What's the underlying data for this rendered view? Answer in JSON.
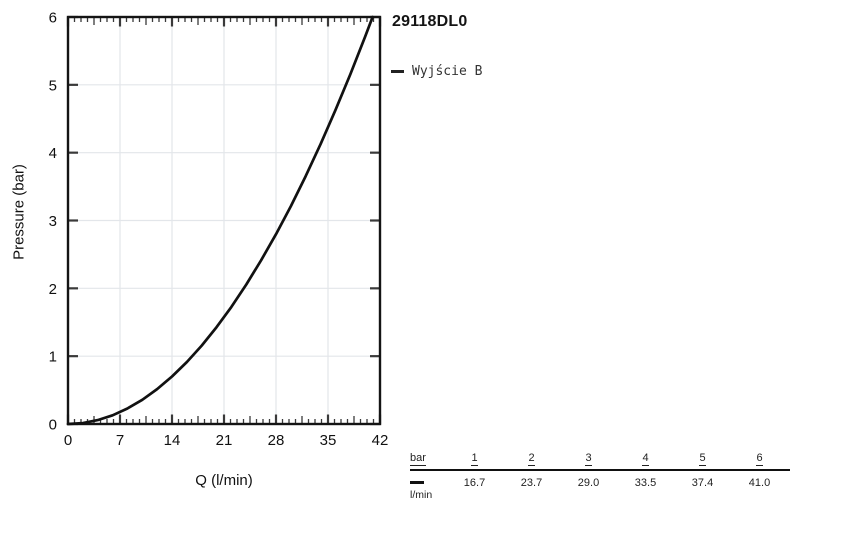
{
  "chart_data": {
    "type": "line",
    "title": "29118DL0",
    "xlabel": "Q (l/min)",
    "ylabel": "Pressure (bar)",
    "xlim": [
      0,
      42
    ],
    "ylim": [
      0,
      6
    ],
    "x_ticks": [
      0,
      7,
      14,
      21,
      28,
      35,
      42
    ],
    "y_ticks": [
      0,
      1,
      2,
      3,
      4,
      5,
      6
    ],
    "minor_x_divisions_per_major": 8,
    "grid": true,
    "grid_color": "#e3e6ea",
    "axis_color": "#141414",
    "tick_color": "#3a3a3a",
    "legend_position": "outside-top-right",
    "series": [
      {
        "name": "Wyjście B",
        "color": "#111111",
        "x": [
          0,
          2,
          4,
          6,
          8,
          10,
          12,
          14,
          16,
          18,
          20,
          22,
          24,
          26,
          28,
          30,
          32,
          34,
          36,
          38,
          40,
          41
        ],
        "y": [
          0,
          0.014,
          0.057,
          0.128,
          0.228,
          0.357,
          0.514,
          0.7,
          0.914,
          1.156,
          1.428,
          1.727,
          2.056,
          2.413,
          2.798,
          3.212,
          3.655,
          4.126,
          4.626,
          5.154,
          5.71,
          6.0
        ]
      }
    ],
    "key_points": {
      "pressure_bar": [
        1,
        2,
        3,
        4,
        5,
        6
      ],
      "flow_lmin": [
        16.7,
        23.7,
        29.0,
        33.5,
        37.4,
        41.0
      ]
    }
  },
  "table": {
    "header_label": "bar",
    "row_label": "l/min",
    "pressures_bar": [
      "1",
      "2",
      "3",
      "4",
      "5",
      "6"
    ],
    "flows_lmin": [
      "16.7",
      "23.7",
      "29.0",
      "33.5",
      "37.4",
      "41.0"
    ]
  }
}
